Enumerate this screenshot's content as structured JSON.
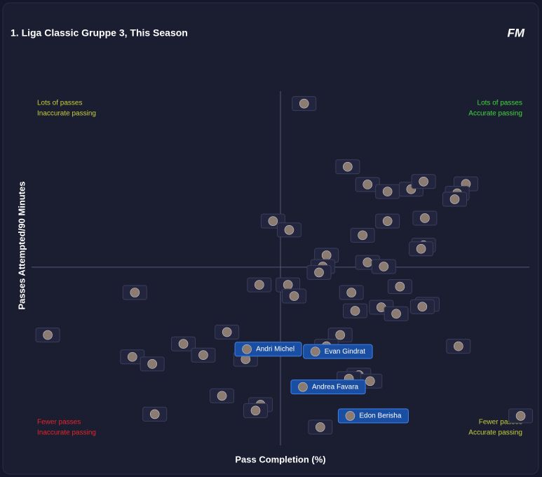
{
  "chart_data": {
    "type": "scatter",
    "title": "1. Liga Classic Gruppe 3, This Season",
    "logo": "FM",
    "x_label": "Pass Completion (%)",
    "y_label": "Passes Attempted/90 Minutes",
    "xlim": [
      55,
      95
    ],
    "ylim": [
      10,
      70
    ],
    "xline": 75,
    "yline": 40.2,
    "quadrant_labels": {
      "top_left": {
        "lines": [
          "Lots of passes",
          "Inaccurate passing"
        ],
        "color": "#c6cf3a"
      },
      "top_right": {
        "lines": [
          "Lots of passes",
          "Accurate passing"
        ],
        "color": "#3fd93a"
      },
      "bottom_left": {
        "lines": [
          "Fewer passes",
          "Inaccurate passing"
        ],
        "color": "#e3262c"
      },
      "bottom_right": {
        "lines": [
          "Fewer passes",
          "Accurate passing"
        ],
        "color": "#c6cf3a"
      }
    },
    "x": [
      76.9,
      80.4,
      82.0,
      83.6,
      85.5,
      86.5,
      89.9,
      89.2,
      89.0,
      74.4,
      75.7,
      83.6,
      86.6,
      81.6,
      86.5,
      86.3,
      78.7,
      78.4,
      78.1,
      82.0,
      83.3,
      73.3,
      75.6,
      76.1,
      63.3,
      80.7,
      84.6,
      81.0,
      83.1,
      84.3,
      86.8,
      86.4,
      56.3,
      70.7,
      67.2,
      68.8,
      63.1,
      64.7,
      72.2,
      79.8,
      78.7,
      89.3,
      72.3,
      77.8,
      81.3,
      82.2,
      80.5,
      76.8,
      70.3,
      73.4,
      73.0,
      64.9,
      80.6,
      78.2,
      94.3
    ],
    "y": [
      67.9,
      57.2,
      54.2,
      53.0,
      53.4,
      54.7,
      54.3,
      52.7,
      51.7,
      48.0,
      46.5,
      48.0,
      48.5,
      45.6,
      43.9,
      43.3,
      42.2,
      40.3,
      39.3,
      41.0,
      40.3,
      37.2,
      37.2,
      35.3,
      35.9,
      35.9,
      36.9,
      32.8,
      33.4,
      32.3,
      33.9,
      33.5,
      28.7,
      29.2,
      27.2,
      25.3,
      25.0,
      23.8,
      24.6,
      28.7,
      26.8,
      26.8,
      26.3,
      25.9,
      21.9,
      20.9,
      21.3,
      19.9,
      18.4,
      16.9,
      15.9,
      15.3,
      15.0,
      13.1,
      15.0
    ],
    "labels": [
      null,
      null,
      null,
      null,
      null,
      null,
      null,
      null,
      null,
      null,
      null,
      null,
      null,
      null,
      null,
      null,
      null,
      null,
      null,
      null,
      null,
      null,
      null,
      null,
      null,
      null,
      null,
      null,
      null,
      null,
      null,
      null,
      null,
      null,
      null,
      null,
      null,
      null,
      null,
      null,
      null,
      null,
      "Andri Michel",
      "Evan Gindrat",
      null,
      null,
      null,
      "Andrea Favara",
      null,
      null,
      null,
      null,
      "Edon Berisha",
      null,
      null
    ]
  }
}
